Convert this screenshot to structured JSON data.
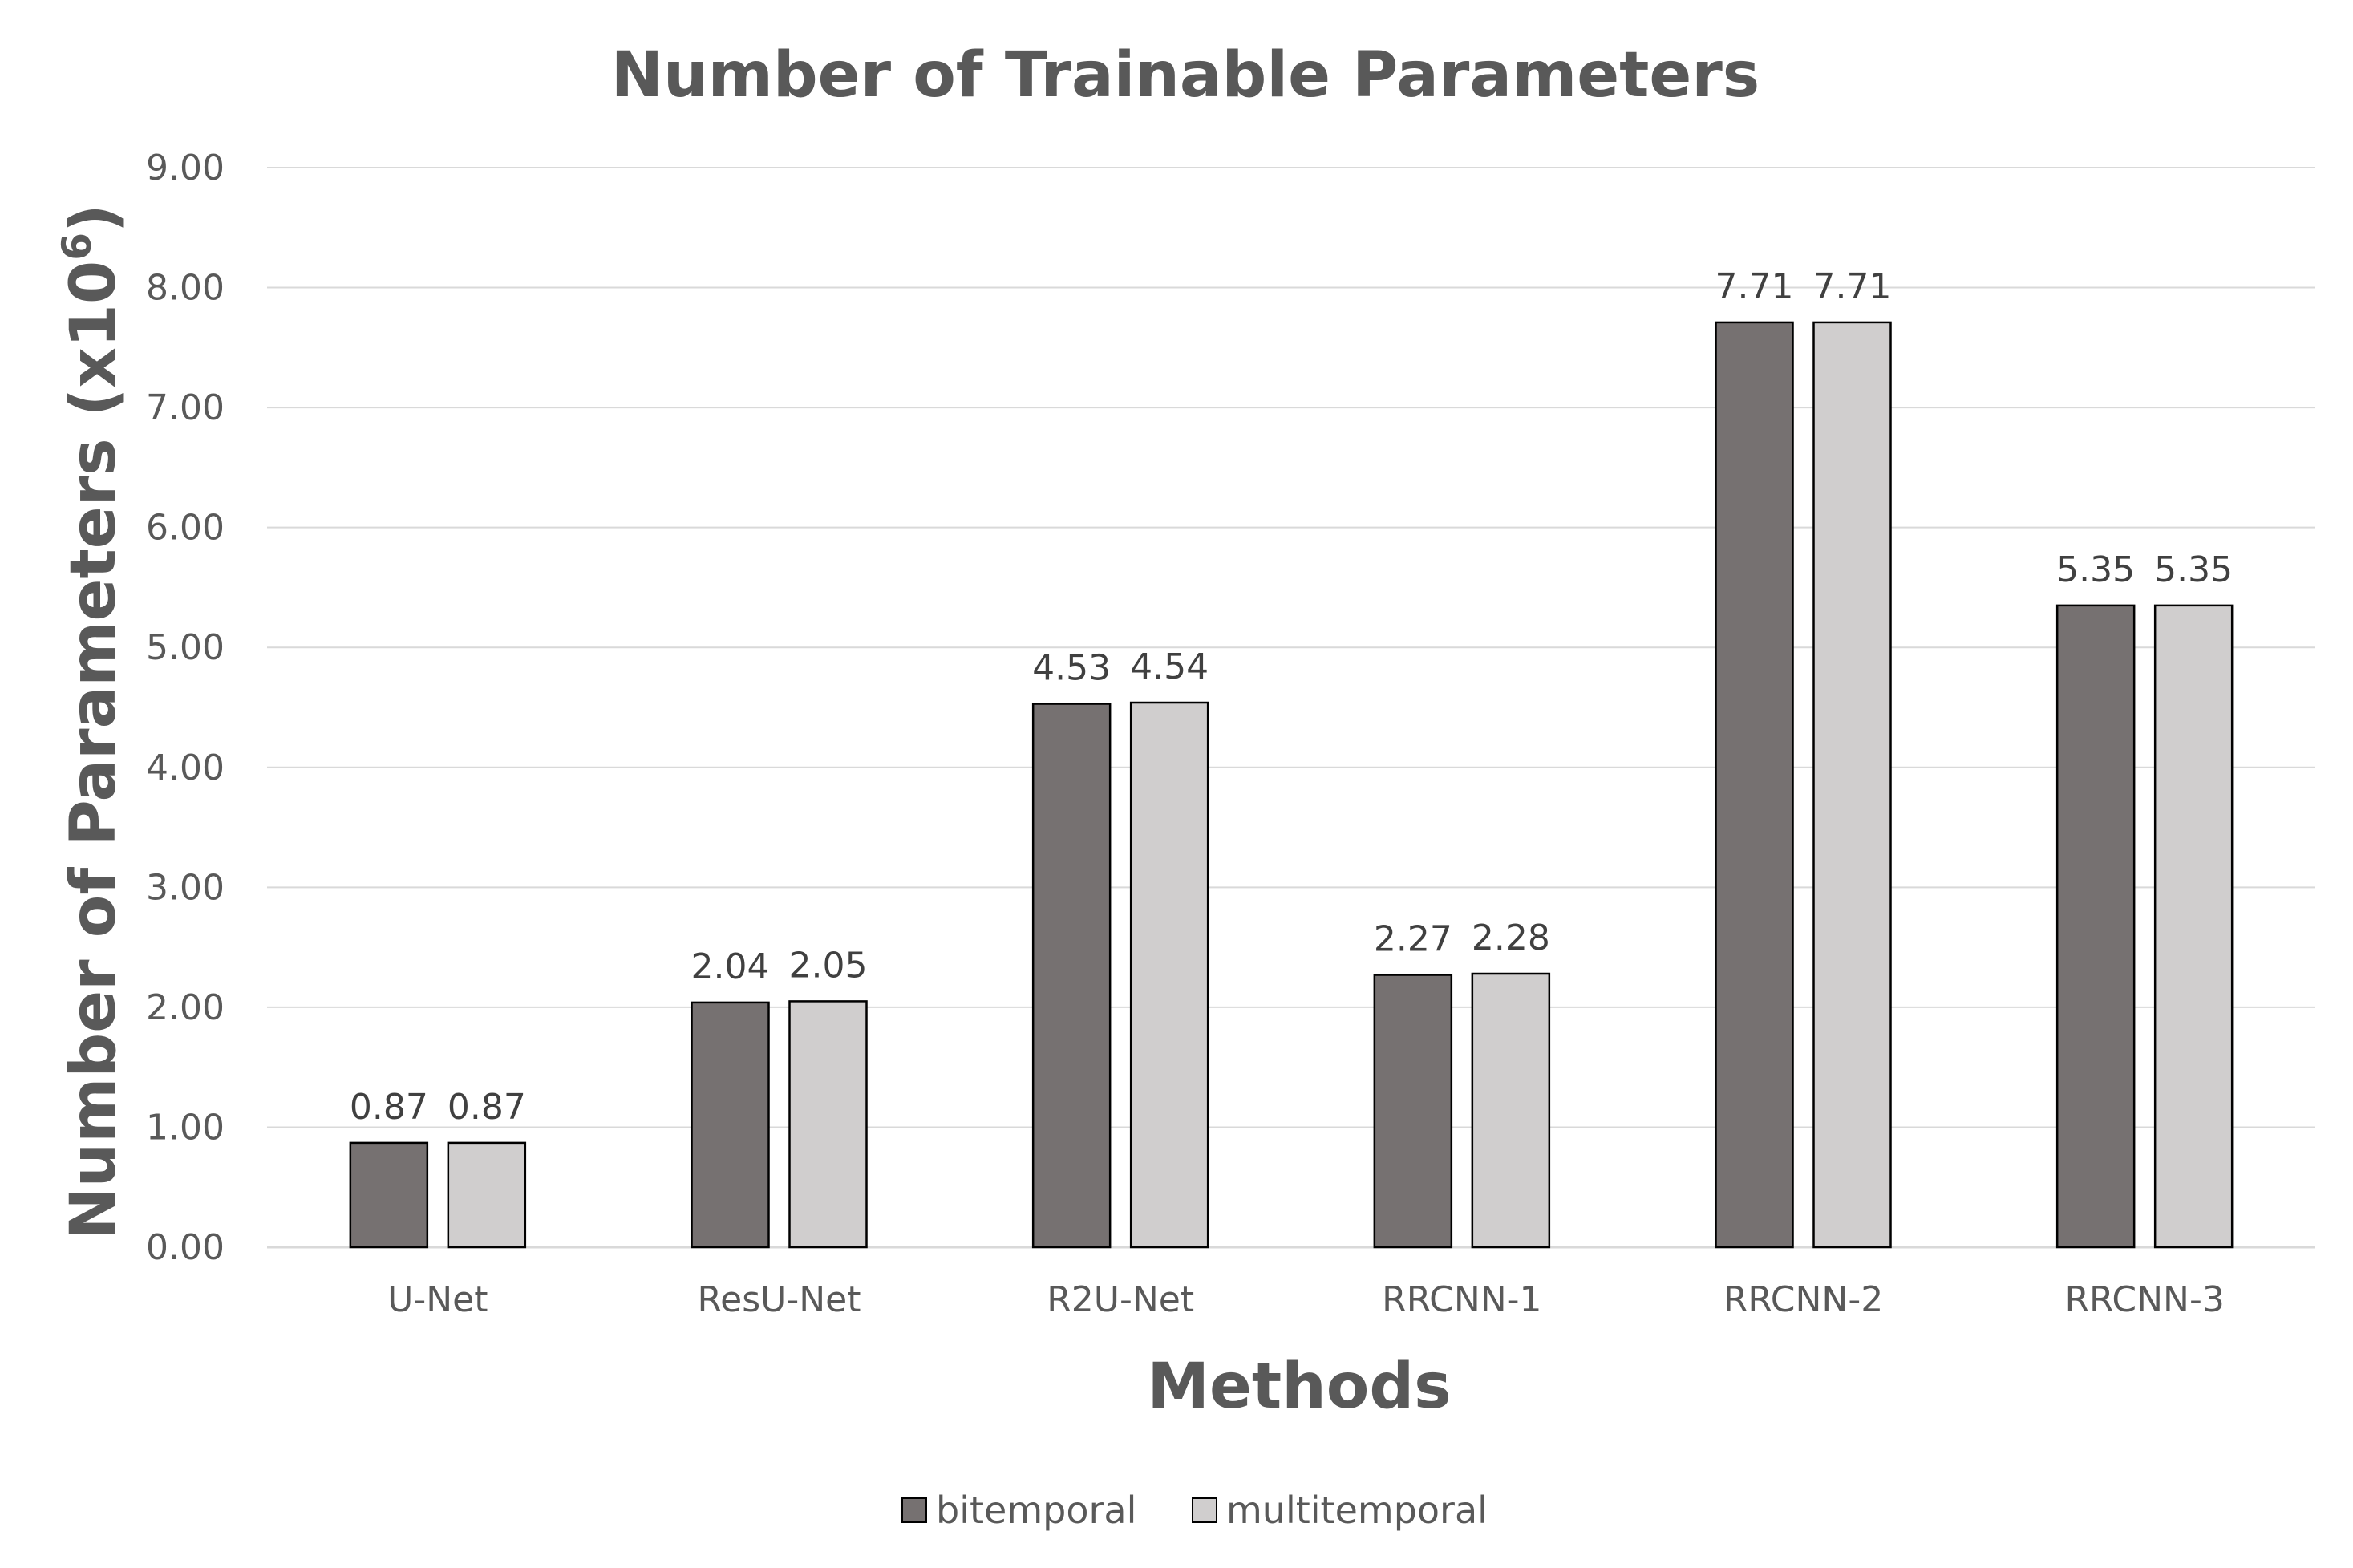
{
  "chart_data": {
    "type": "bar",
    "title": "Number of Trainable Parameters",
    "xlabel": "Methods",
    "ylabel": "Number of Parameters (x10",
    "ylabel_superscript": "6",
    "ylabel_suffix": ")",
    "categories": [
      "U-Net",
      "ResU-Net",
      "R2U-Net",
      "RRCNN-1",
      "RRCNN-2",
      "RRCNN-3"
    ],
    "series": [
      {
        "name": "bitemporal",
        "color": "#767171",
        "values": [
          0.87,
          2.04,
          4.53,
          2.27,
          7.71,
          5.35
        ]
      },
      {
        "name": "multitemporal",
        "color": "#d0cece",
        "values": [
          0.87,
          2.05,
          4.54,
          2.28,
          7.71,
          5.35
        ]
      }
    ],
    "ylim": [
      0,
      9
    ],
    "yticks": [
      0,
      1,
      2,
      3,
      4,
      5,
      6,
      7,
      8,
      9
    ],
    "ytick_labels": [
      "0.00",
      "1.00",
      "2.00",
      "3.00",
      "4.00",
      "5.00",
      "6.00",
      "7.00",
      "8.00",
      "9.00"
    ],
    "data_labels": true,
    "grid": true,
    "legend_position": "bottom"
  }
}
